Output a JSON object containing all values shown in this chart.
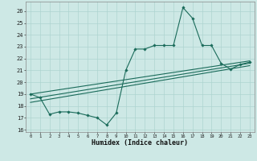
{
  "xlabel": "Humidex (Indice chaleur)",
  "bg_color": "#cde8e5",
  "line_color": "#1a6b5a",
  "grid_color": "#aed4d0",
  "xlim": [
    -0.5,
    23.5
  ],
  "ylim": [
    15.8,
    26.8
  ],
  "yticks": [
    16,
    17,
    18,
    19,
    20,
    21,
    22,
    23,
    24,
    25,
    26
  ],
  "xticks": [
    0,
    1,
    2,
    3,
    4,
    5,
    6,
    7,
    8,
    9,
    10,
    11,
    12,
    13,
    14,
    15,
    16,
    17,
    18,
    19,
    20,
    21,
    22,
    23
  ],
  "main_x": [
    0,
    1,
    2,
    3,
    4,
    5,
    6,
    7,
    8,
    9,
    10,
    11,
    12,
    13,
    14,
    15,
    16,
    17,
    18,
    19,
    20,
    21,
    22,
    23
  ],
  "main_y": [
    19.0,
    18.7,
    17.3,
    17.5,
    17.5,
    17.4,
    17.2,
    17.0,
    16.4,
    17.4,
    21.0,
    22.8,
    22.8,
    23.1,
    23.1,
    23.1,
    26.3,
    25.4,
    23.1,
    23.1,
    21.6,
    21.1,
    21.5,
    21.7
  ],
  "trend1_x": [
    0,
    23
  ],
  "trend1_y": [
    19.0,
    21.8
  ],
  "trend2_x": [
    0,
    23
  ],
  "trend2_y": [
    18.6,
    21.6
  ],
  "trend3_x": [
    0,
    23
  ],
  "trend3_y": [
    18.3,
    21.4
  ]
}
